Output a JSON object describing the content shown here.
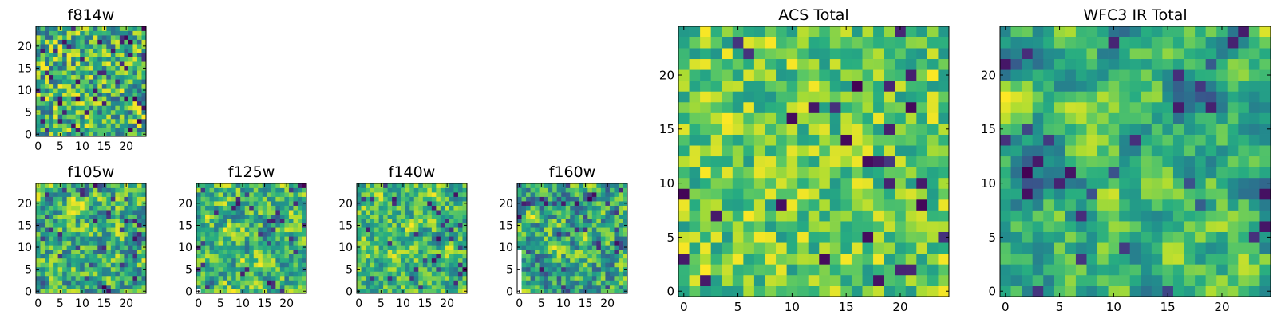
{
  "figure_title": "",
  "chart_data": [
    {
      "id": "f814w",
      "type": "heatmap",
      "title": "f814w",
      "xlabel": "",
      "ylabel": "",
      "grid": 25,
      "xlim": [
        0,
        24
      ],
      "ylim": [
        0,
        24
      ],
      "xticks": [
        0,
        5,
        10,
        15,
        20
      ],
      "yticks": [
        0,
        5,
        10,
        15,
        20
      ],
      "colormap": "viridis",
      "seed": 814,
      "bias": 0.6,
      "spread": 0.32,
      "smooth": 0,
      "white_pixels": []
    },
    {
      "id": "f105w",
      "type": "heatmap",
      "title": "f105w",
      "xlabel": "",
      "ylabel": "",
      "grid": 25,
      "xlim": [
        0,
        24
      ],
      "ylim": [
        0,
        24
      ],
      "xticks": [
        0,
        5,
        10,
        15,
        20
      ],
      "yticks": [
        0,
        5,
        10,
        15,
        20
      ],
      "colormap": "viridis",
      "seed": 105,
      "bias": 0.55,
      "spread": 0.3,
      "smooth": 1,
      "white_pixels": []
    },
    {
      "id": "f125w",
      "type": "heatmap",
      "title": "f125w",
      "xlabel": "",
      "ylabel": "",
      "grid": 25,
      "xlim": [
        0,
        24
      ],
      "ylim": [
        0,
        24
      ],
      "xticks": [
        0,
        5,
        10,
        15,
        20
      ],
      "yticks": [
        0,
        5,
        10,
        15,
        20
      ],
      "colormap": "viridis",
      "seed": 125,
      "bias": 0.62,
      "spread": 0.3,
      "smooth": 1,
      "white_pixels": [
        [
          0,
          0
        ]
      ]
    },
    {
      "id": "f140w",
      "type": "heatmap",
      "title": "f140w",
      "xlabel": "",
      "ylabel": "",
      "grid": 25,
      "xlim": [
        0,
        24
      ],
      "ylim": [
        0,
        24
      ],
      "xticks": [
        0,
        5,
        10,
        15,
        20
      ],
      "yticks": [
        0,
        5,
        10,
        15,
        20
      ],
      "colormap": "viridis",
      "seed": 140,
      "bias": 0.66,
      "spread": 0.28,
      "smooth": 1,
      "white_pixels": []
    },
    {
      "id": "f160w",
      "type": "heatmap",
      "title": "f160w",
      "xlabel": "",
      "ylabel": "",
      "grid": 25,
      "xlim": [
        0,
        24
      ],
      "ylim": [
        0,
        24
      ],
      "xticks": [
        0,
        5,
        10,
        15,
        20
      ],
      "yticks": [
        0,
        5,
        10,
        15,
        20
      ],
      "colormap": "viridis",
      "seed": 160,
      "bias": 0.55,
      "spread": 0.3,
      "smooth": 1,
      "white_pixels": [
        [
          0,
          0
        ],
        [
          0,
          1
        ],
        [
          0,
          2
        ],
        [
          0,
          3
        ],
        [
          0,
          4
        ],
        [
          0,
          5
        ],
        [
          0,
          6
        ],
        [
          0,
          7
        ],
        [
          0,
          8
        ],
        [
          0,
          9
        ]
      ]
    },
    {
      "id": "acs-total",
      "type": "heatmap",
      "title": "ACS Total",
      "xlabel": "",
      "ylabel": "",
      "grid": 25,
      "xlim": [
        0,
        24
      ],
      "ylim": [
        0,
        24
      ],
      "xticks": [
        0,
        5,
        10,
        15,
        20
      ],
      "yticks": [
        0,
        5,
        10,
        15,
        20
      ],
      "colormap": "viridis",
      "seed": 2001,
      "bias": 0.7,
      "spread": 0.22,
      "smooth": 0,
      "white_pixels": []
    },
    {
      "id": "wfc3-ir-total",
      "type": "heatmap",
      "title": "WFC3 IR Total",
      "xlabel": "",
      "ylabel": "",
      "grid": 25,
      "xlim": [
        0,
        24
      ],
      "ylim": [
        0,
        24
      ],
      "xticks": [
        0,
        5,
        10,
        15,
        20
      ],
      "yticks": [
        0,
        5,
        10,
        15,
        20
      ],
      "colormap": "viridis",
      "seed": 3003,
      "bias": 0.62,
      "spread": 0.22,
      "smooth": 2,
      "white_pixels": []
    }
  ]
}
